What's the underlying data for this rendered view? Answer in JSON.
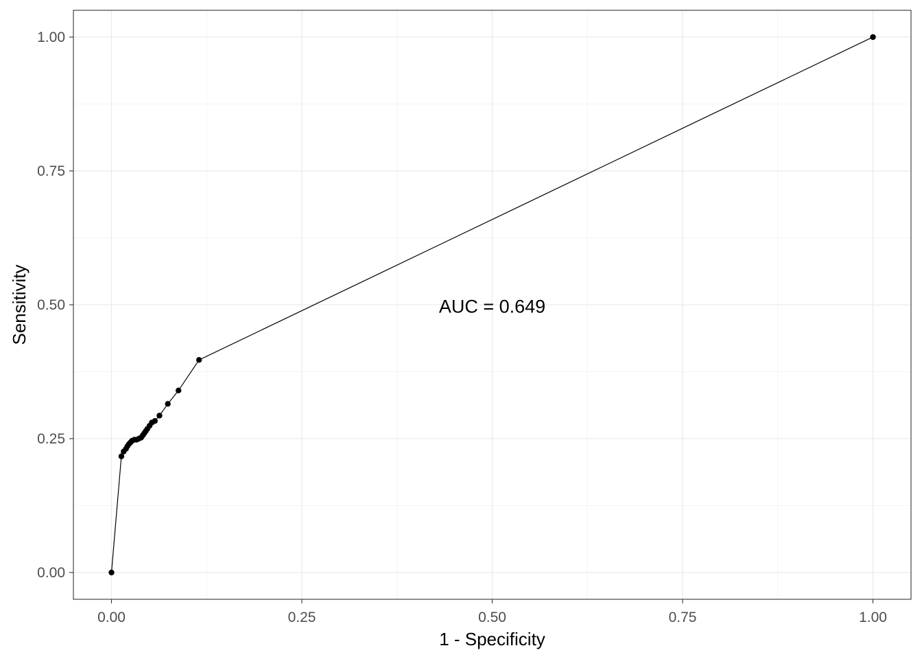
{
  "chart_data": {
    "type": "line",
    "xlabel": "1 - Specificity",
    "ylabel": "Sensitivity",
    "xlim": [
      -0.05,
      1.05
    ],
    "ylim": [
      -0.05,
      1.05
    ],
    "x_ticks": [
      0,
      0.25,
      0.5,
      0.75,
      1
    ],
    "x_tick_labels": [
      "0.00",
      "0.25",
      "0.50",
      "0.75",
      "1.00"
    ],
    "y_ticks": [
      0,
      0.25,
      0.5,
      0.75,
      1
    ],
    "y_tick_labels": [
      "0.00",
      "0.25",
      "0.50",
      "0.75",
      "1.00"
    ],
    "grid": true,
    "series": [
      {
        "x": [
          0.0,
          0.013,
          0.016,
          0.019,
          0.021,
          0.023,
          0.025,
          0.027,
          0.03,
          0.033,
          0.036,
          0.039,
          0.041,
          0.043,
          0.045,
          0.047,
          0.05,
          0.053,
          0.057,
          0.063,
          0.074,
          0.088,
          0.115,
          1.0
        ],
        "y": [
          0.0,
          0.217,
          0.226,
          0.231,
          0.236,
          0.24,
          0.243,
          0.246,
          0.248,
          0.248,
          0.25,
          0.252,
          0.256,
          0.26,
          0.264,
          0.268,
          0.274,
          0.28,
          0.283,
          0.293,
          0.315,
          0.34,
          0.397,
          1.0
        ]
      }
    ],
    "annotations": [
      {
        "text": "AUC =  0.649",
        "x": 0.5,
        "y": 0.497
      }
    ],
    "colors": {
      "line": "#000000",
      "point": "#000000",
      "panel_border": "#333333",
      "grid_major": "#ebebeb",
      "grid_minor": "#f4f4f4",
      "tick_text": "#4d4d4d"
    }
  }
}
